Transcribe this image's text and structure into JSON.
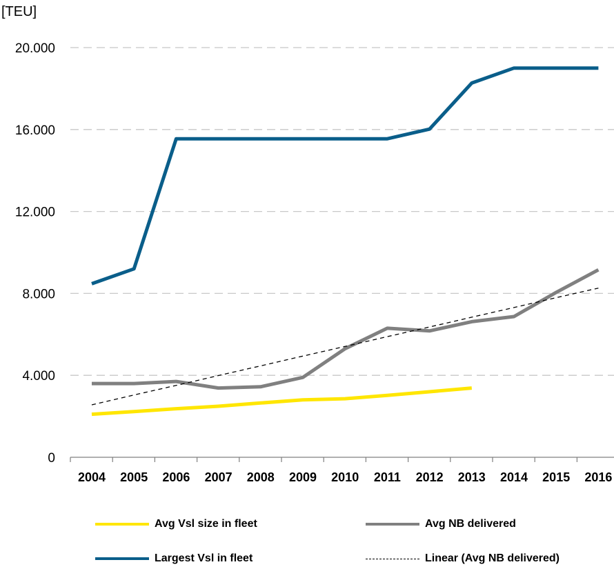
{
  "chart_data": {
    "type": "line",
    "unit_label": "[TEU]",
    "categories": [
      "2004",
      "2005",
      "2006",
      "2007",
      "2008",
      "2009",
      "2010",
      "2011",
      "2012",
      "2013",
      "2014",
      "2015",
      "2016"
    ],
    "ylim": [
      0,
      20000
    ],
    "yticks": [
      0,
      4000,
      8000,
      12000,
      16000,
      20000
    ],
    "ytick_labels": [
      "0",
      "4.000",
      "8.000",
      "12.000",
      "16.000",
      "20.000"
    ],
    "grid": true,
    "series": [
      {
        "name": "Avg Vsl  size in fleet",
        "color": "#FFE600",
        "dashed": false,
        "values": [
          2100,
          2230,
          2370,
          2490,
          2650,
          2800,
          2860,
          3020,
          3200,
          3380,
          null,
          null,
          null
        ]
      },
      {
        "name": "Avg NB delivered",
        "color": "#808080",
        "dashed": false,
        "values": [
          3600,
          3600,
          3700,
          3380,
          3440,
          3900,
          5300,
          6300,
          6170,
          6620,
          6870,
          8050,
          9150
        ]
      },
      {
        "name": "Largest Vsl in fleet",
        "color": "#0A5E8A",
        "dashed": false,
        "values": [
          8470,
          9200,
          15550,
          15550,
          15550,
          15550,
          15550,
          15550,
          16020,
          18270,
          19000,
          19000,
          19000
        ]
      },
      {
        "name": "Linear (Avg NB delivered)",
        "color": "#000000",
        "dashed": true,
        "values": [
          2560,
          3040,
          3510,
          3990,
          4460,
          4940,
          5410,
          5890,
          6360,
          6840,
          7310,
          7790,
          8260
        ]
      }
    ],
    "legend": {
      "position": "bottom",
      "order": [
        0,
        1,
        2,
        3
      ]
    }
  }
}
